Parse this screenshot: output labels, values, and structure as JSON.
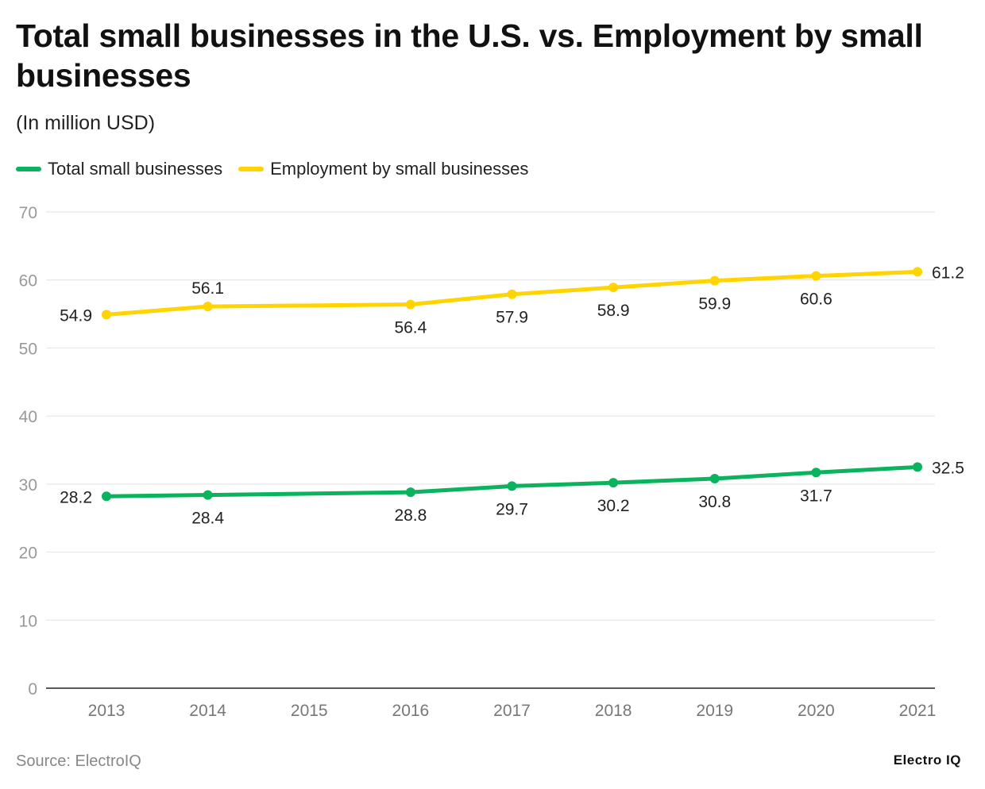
{
  "chart_data": {
    "type": "line",
    "title": "Total small businesses in the U.S. vs. Employment by small businesses",
    "subtitle": "(In million USD)",
    "x": [
      "2013",
      "2014",
      "2015",
      "2016",
      "2017",
      "2018",
      "2019",
      "2020",
      "2021"
    ],
    "series": [
      {
        "name": "Total small businesses",
        "color": "#0cb35e",
        "values": [
          28.2,
          28.4,
          null,
          28.8,
          29.7,
          30.2,
          30.8,
          31.7,
          32.5
        ],
        "label_pos": [
          "left",
          "below",
          null,
          "below",
          "below",
          "below",
          "below",
          "below",
          "right"
        ]
      },
      {
        "name": "Employment by small businesses",
        "color": "#ffd400",
        "values": [
          54.9,
          56.1,
          null,
          56.4,
          57.9,
          58.9,
          59.9,
          60.6,
          61.2
        ],
        "label_pos": [
          "left",
          "above",
          null,
          "below",
          "below",
          "below",
          "below",
          "below",
          "right"
        ]
      }
    ],
    "ylim": [
      0,
      70
    ],
    "yticks": [
      0,
      10,
      20,
      30,
      40,
      50,
      60,
      70
    ],
    "grid": true,
    "legend": "top-left"
  },
  "source": "Source: ElectroIQ",
  "logo": "Electro IQ"
}
